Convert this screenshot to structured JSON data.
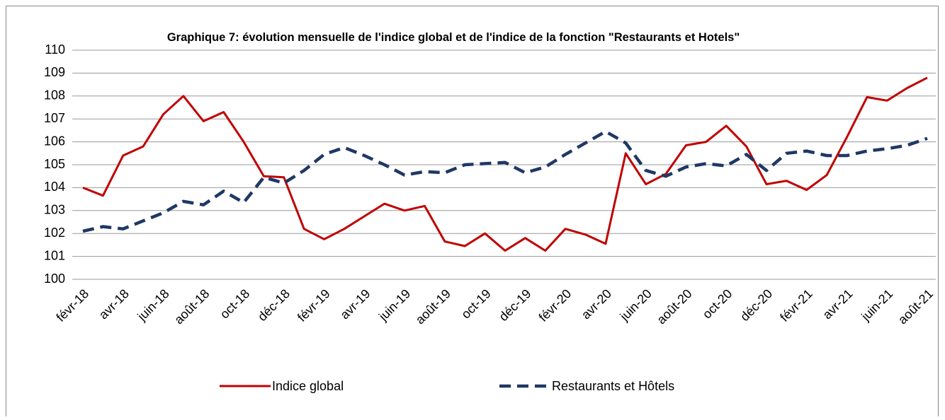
{
  "chart_data": {
    "type": "line",
    "title": "Graphique 7: évolution mensuelle de l'indice global et de l'indice de la fonction \"Restaurants et Hotels\"",
    "categories": [
      "févr-18",
      null,
      "avr-18",
      null,
      "juin-18",
      null,
      "août-18",
      null,
      "oct-18",
      null,
      "déc-18",
      null,
      "févr-19",
      null,
      "avr-19",
      null,
      "juin-19",
      null,
      "août-19",
      null,
      "oct-19",
      null,
      "déc-19",
      null,
      "févr-20",
      null,
      "avr-20",
      null,
      "juin-20",
      null,
      "août-20",
      null,
      "oct-20",
      null,
      "déc-20",
      null,
      "févr-21",
      null,
      "avr-21",
      null,
      "juin-21",
      null,
      "août-21"
    ],
    "series": [
      {
        "name": "Indice global",
        "color": "#c00000",
        "dashed": false,
        "values": [
          104.0,
          103.65,
          105.4,
          105.8,
          107.2,
          108.0,
          106.9,
          107.3,
          106.0,
          104.5,
          104.45,
          102.2,
          101.75,
          102.2,
          102.75,
          103.3,
          103.0,
          103.2,
          101.65,
          101.45,
          102.0,
          101.25,
          101.8,
          101.25,
          102.2,
          101.95,
          101.55,
          105.5,
          104.15,
          104.6,
          105.85,
          106.0,
          106.7,
          105.8,
          104.15,
          104.3,
          103.9,
          104.55,
          106.2,
          107.95,
          107.8,
          108.35,
          108.8
        ]
      },
      {
        "name": "Restaurants et Hôtels",
        "color": "#1f3864",
        "dashed": true,
        "values": [
          102.1,
          102.3,
          102.2,
          102.55,
          102.9,
          103.4,
          103.25,
          103.85,
          103.35,
          104.45,
          104.2,
          104.75,
          105.45,
          105.75,
          105.4,
          105.0,
          104.55,
          104.7,
          104.65,
          105.0,
          105.05,
          105.1,
          104.65,
          104.9,
          105.45,
          105.95,
          106.45,
          105.95,
          104.75,
          104.5,
          104.9,
          105.05,
          104.95,
          105.45,
          104.75,
          105.5,
          105.6,
          105.4,
          105.4,
          105.6,
          105.7,
          105.85,
          106.15
        ]
      }
    ],
    "ylim": [
      100,
      110
    ],
    "yticks": [
      100,
      101,
      102,
      103,
      104,
      105,
      106,
      107,
      108,
      109,
      110
    ],
    "grid": true,
    "legend": "bottom"
  }
}
